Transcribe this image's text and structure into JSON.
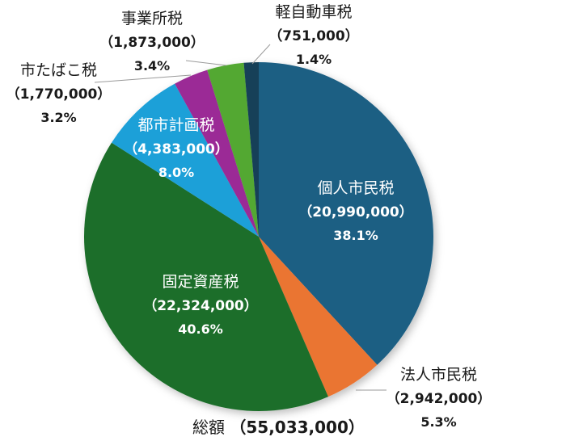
{
  "chart_data": {
    "type": "pie",
    "title": "",
    "start_angle_deg": 0,
    "direction": "clockwise",
    "slices": [
      {
        "label": "個人市民税",
        "value": 20990000,
        "value_text": "（20,990,000）",
        "percent": 38.1,
        "percent_text": "38.1%",
        "color": "#1b5e83"
      },
      {
        "label": "法人市民税",
        "value": 2942000,
        "value_text": "（2,942,000）",
        "percent": 5.3,
        "percent_text": "5.3%",
        "color": "#ea7433"
      },
      {
        "label": "固定資産税",
        "value": 22324000,
        "value_text": "（22,324,000）",
        "percent": 40.6,
        "percent_text": "40.6%",
        "color": "#1d6e2a"
      },
      {
        "label": "都市計画税",
        "value": 4383000,
        "value_text": "（4,383,000）",
        "percent": 8.0,
        "percent_text": "8.0%",
        "color": "#1fa0d8"
      },
      {
        "label": "市たばこ税",
        "value": 1770000,
        "value_text": "（1,770,000）",
        "percent": 3.2,
        "percent_text": "3.2%",
        "color": "#9b2a96"
      },
      {
        "label": "事業所税",
        "value": 1873000,
        "value_text": "（1,873,000）",
        "percent": 3.4,
        "percent_text": "3.4%",
        "color": "#52a833"
      },
      {
        "label": "軽自動車税",
        "value": 751000,
        "value_text": "（751,000）",
        "percent": 1.4,
        "percent_text": "1.4%",
        "color": "#123f58"
      }
    ],
    "total": {
      "label": "総額",
      "value": 55033000,
      "value_text": "（55,033,000）"
    },
    "legend": "none"
  },
  "labels": {
    "kojin": {
      "name": "個人市民税",
      "val": "（20,990,000）",
      "pct": "38.1%"
    },
    "hojin": {
      "name": "法人市民税",
      "val": "（2,942,000）",
      "pct": "5.3%"
    },
    "kotei": {
      "name": "固定資産税",
      "val": "（22,324,000）",
      "pct": "40.6%"
    },
    "toshi": {
      "name": "都市計画税",
      "val": "（4,383,000）",
      "pct": "8.0%"
    },
    "tabako": {
      "name": "市たばこ税",
      "val": "（1,770,000）",
      "pct": "3.2%"
    },
    "jigyo": {
      "name": "事業所税",
      "val": "（1,873,000）",
      "pct": "3.4%"
    },
    "keiji": {
      "name": "軽自動車税",
      "val": "（751,000）",
      "pct": "1.4%"
    }
  },
  "total": {
    "label": "総額",
    "value": "（55,033,000）"
  }
}
